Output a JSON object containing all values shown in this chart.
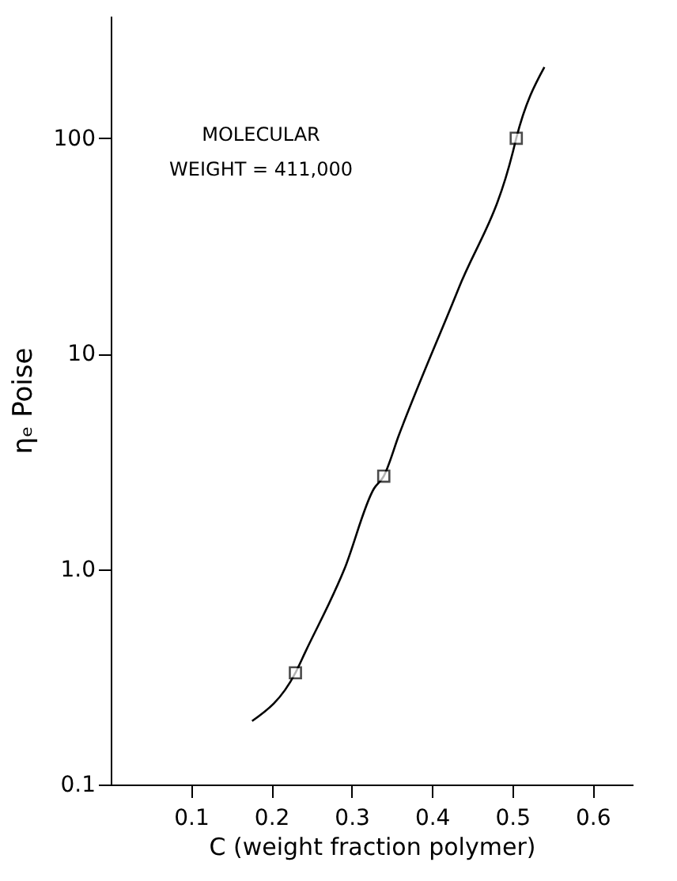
{
  "chart_data": {
    "type": "line",
    "xlabel": "C (weight fraction polymer)",
    "ylabel": "ηₑ  Poise",
    "annotations": [
      "MOLECULAR\nWEIGHT = 411,000"
    ],
    "series": [
      {
        "color": "#000000",
        "marker": "none",
        "x": [
          0.176,
          0.23,
          0.242,
          0.291,
          0.328,
          0.34,
          0.359,
          0.433,
          0.501,
          0.505,
          0.54
        ],
        "values": [
          0.197,
          0.33,
          0.41,
          1.0,
          2.37,
          2.7,
          4.2,
          20,
          87,
          100,
          214
        ]
      },
      {
        "type": "scatter",
        "color": "#000000",
        "marker": "square",
        "x": [
          0.23,
          0.34,
          0.505
        ],
        "values": [
          0.33,
          2.7,
          100
        ]
      }
    ],
    "log": "y",
    "grid": false,
    "xlim": [
      0,
      0.65
    ],
    "xticks": [
      0.1,
      0.2,
      0.3,
      0.4,
      0.5,
      0.6
    ],
    "ylim": [
      0.1,
      370
    ],
    "yticks": [
      0.1,
      {
        "value": 1,
        "label": "1.0"
      },
      10,
      100
    ]
  }
}
